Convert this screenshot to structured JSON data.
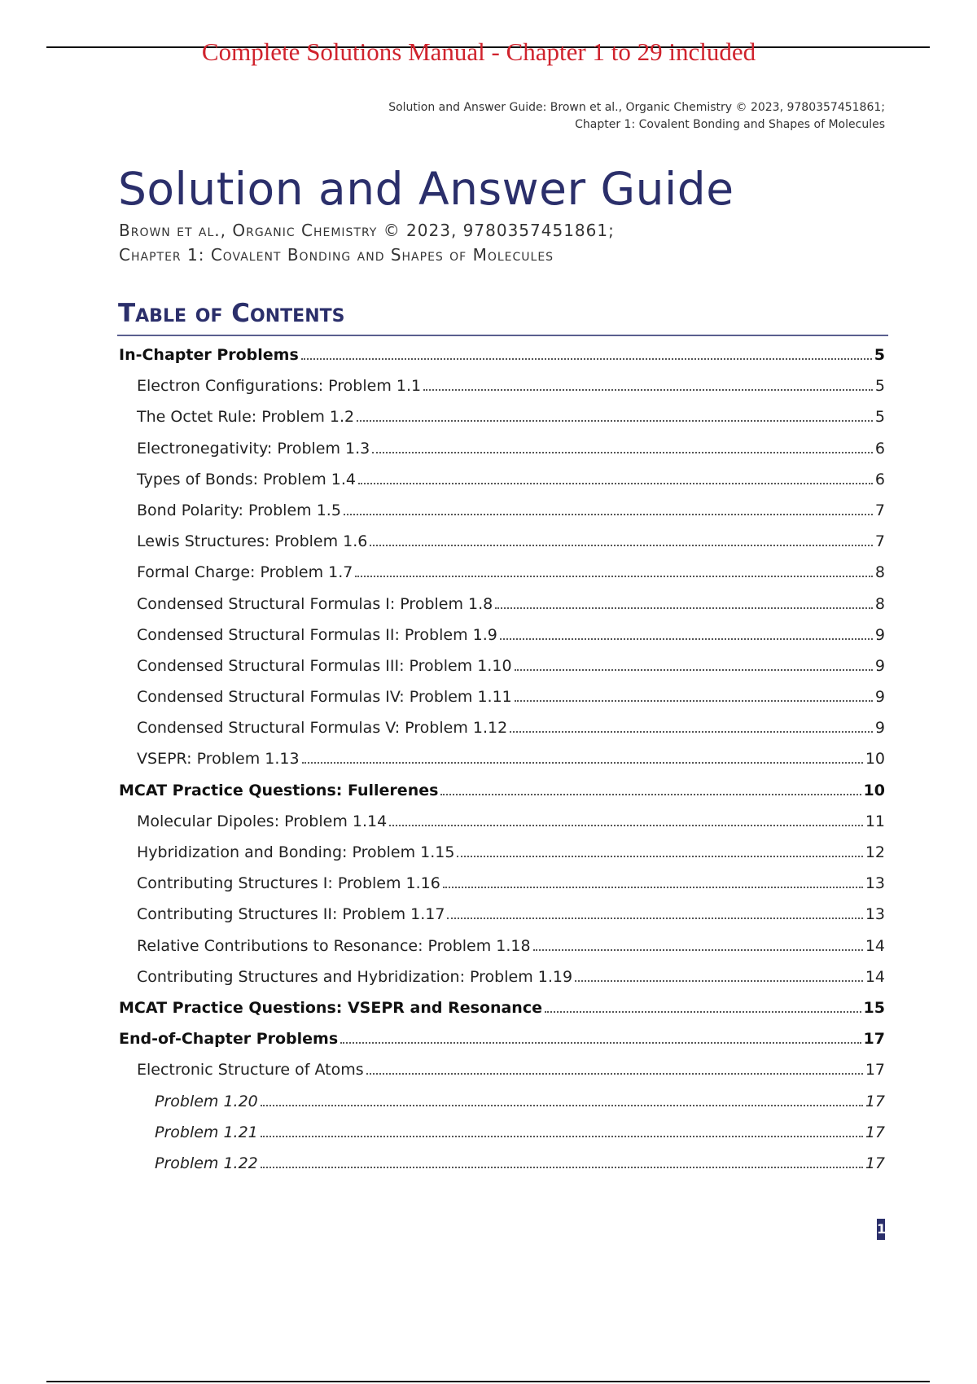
{
  "banner": "Complete Solutions Manual - Chapter 1 to 29 included",
  "running_header": {
    "line1": "Solution and Answer Guide: Brown et al., Organic Chemistry © 2023, 9780357451861;",
    "line2": "Chapter 1: Covalent Bonding and Shapes of Molecules"
  },
  "title": "Solution and Answer Guide",
  "subtitle": {
    "line1": "Brown et al., Organic Chemistry © 2023, 9780357451861;",
    "line2": "Chapter 1: Covalent Bonding and Shapes of Molecules"
  },
  "toc": {
    "heading": "Table of Contents",
    "entries": [
      {
        "label": "In-Chapter Problems",
        "page": "5",
        "level": 0
      },
      {
        "label": "Electron Configurations: Problem 1.1",
        "page": "5",
        "level": 1
      },
      {
        "label": "The Octet Rule: Problem 1.2",
        "page": "5",
        "level": 1
      },
      {
        "label": "Electronegativity: Problem 1.3",
        "page": "6",
        "level": 1
      },
      {
        "label": "Types of Bonds: Problem 1.4",
        "page": "6",
        "level": 1
      },
      {
        "label": "Bond Polarity: Problem 1.5",
        "page": "7",
        "level": 1
      },
      {
        "label": "Lewis Structures: Problem 1.6",
        "page": "7",
        "level": 1
      },
      {
        "label": "Formal Charge: Problem 1.7",
        "page": "8",
        "level": 1
      },
      {
        "label": "Condensed Structural Formulas I: Problem 1.8",
        "page": "8",
        "level": 1
      },
      {
        "label": "Condensed Structural Formulas II: Problem 1.9",
        "page": "9",
        "level": 1
      },
      {
        "label": "Condensed Structural Formulas III: Problem 1.10",
        "page": "9",
        "level": 1
      },
      {
        "label": "Condensed Structural Formulas IV: Problem 1.11",
        "page": "9",
        "level": 1
      },
      {
        "label": "Condensed Structural Formulas V: Problem 1.12",
        "page": "9",
        "level": 1
      },
      {
        "label": "VSEPR: Problem 1.13",
        "page": "10",
        "level": 1
      },
      {
        "label": "MCAT Practice Questions: Fullerenes",
        "page": "10",
        "level": 0
      },
      {
        "label": "Molecular Dipoles: Problem 1.14",
        "page": "11",
        "level": 1
      },
      {
        "label": "Hybridization and Bonding: Problem 1.15",
        "page": "12",
        "level": 1
      },
      {
        "label": "Contributing Structures I: Problem 1.16",
        "page": "13",
        "level": 1
      },
      {
        "label": "Contributing Structures II: Problem 1.17",
        "page": "13",
        "level": 1
      },
      {
        "label": "Relative Contributions to Resonance: Problem 1.18",
        "page": "14",
        "level": 1
      },
      {
        "label": "Contributing Structures and Hybridization: Problem 1.19",
        "page": "14",
        "level": 1
      },
      {
        "label": "MCAT Practice Questions: VSEPR and Resonance",
        "page": "15",
        "level": 0
      },
      {
        "label": "End-of-Chapter Problems",
        "page": "17",
        "level": 0
      },
      {
        "label": "Electronic Structure of Atoms",
        "page": "17",
        "level": 1
      },
      {
        "label": "Problem 1.20",
        "page": "17",
        "level": 2
      },
      {
        "label": "Problem 1.21",
        "page": "17",
        "level": 2
      },
      {
        "label": "Problem 1.22",
        "page": "17",
        "level": 2
      }
    ]
  },
  "page_number": "1",
  "colors": {
    "banner": "#d0232d",
    "accent": "#2b2f6b"
  }
}
